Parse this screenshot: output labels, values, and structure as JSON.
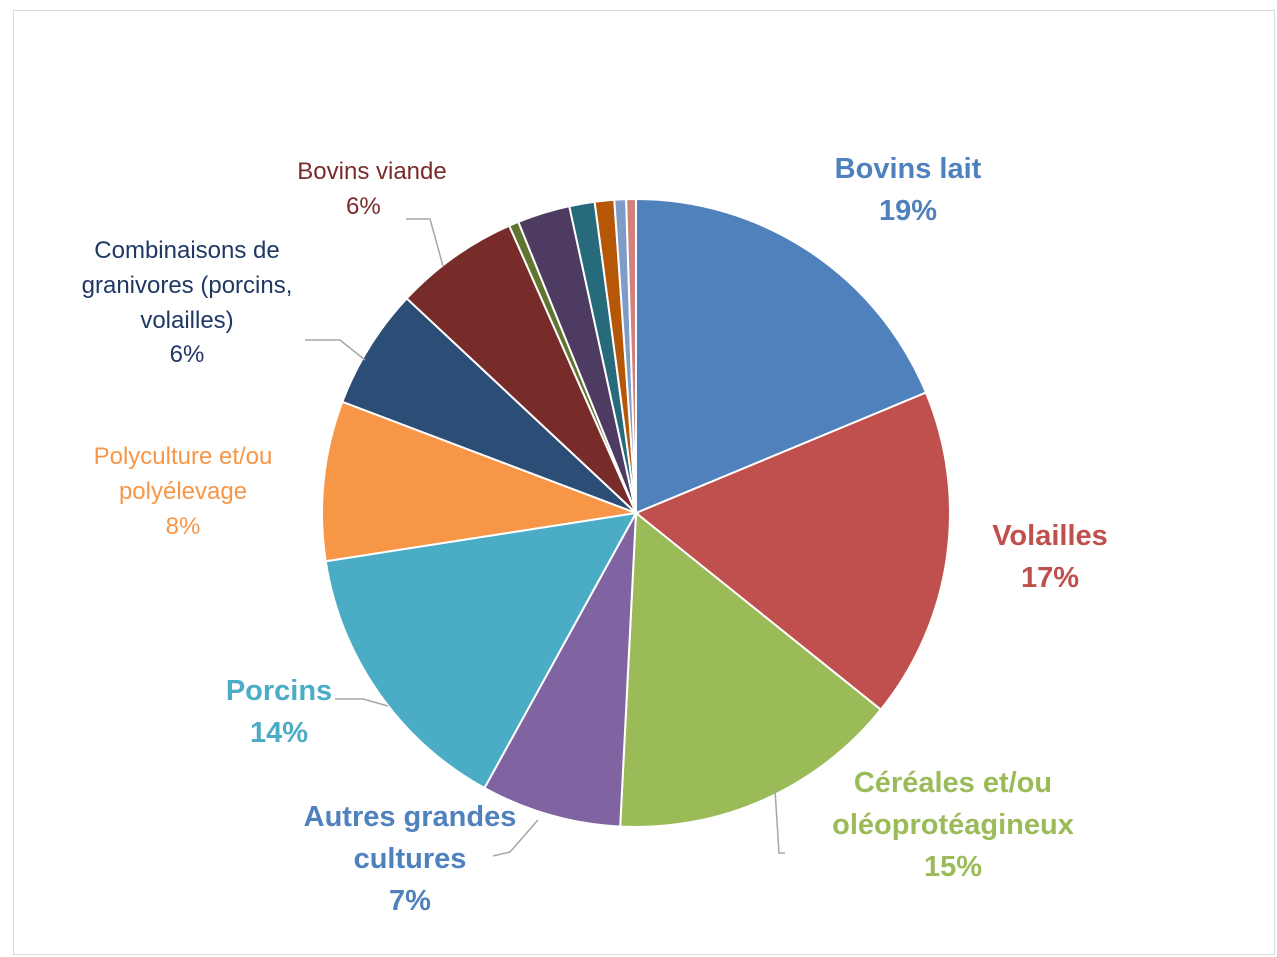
{
  "chart_data": {
    "type": "pie",
    "slices": [
      {
        "label": "Bovins lait",
        "value_label": "19%",
        "value": 18.7,
        "color": "#4F81BD",
        "style": "big"
      },
      {
        "label": "Volailles",
        "value_label": "17%",
        "value": 17.0,
        "color": "#C0504D",
        "style": "big"
      },
      {
        "label": "Céréales et/ou oléoprotéagineux",
        "value_label": "15%",
        "value": 15.0,
        "color": "#9BBB59",
        "style": "big"
      },
      {
        "label": "Autres grandes cultures",
        "value_label": "7%",
        "value": 7.2,
        "color": "#8064A2",
        "style": "big"
      },
      {
        "label": "Porcins",
        "value_label": "14%",
        "value": 14.5,
        "color": "#4BACC6",
        "style": "big"
      },
      {
        "label": "Polyculture et/ou polyélevage",
        "value_label": "8%",
        "value": 8.2,
        "color": "#F79646",
        "style": "small"
      },
      {
        "label": "Combinaisons de granivores (porcins, volailles)",
        "value_label": "6%",
        "value": 6.2,
        "color": "#2C4D75",
        "style": "small"
      },
      {
        "label": "Bovins viande",
        "value_label": "6%",
        "value": 6.4,
        "color": "#772C2A",
        "style": "small"
      },
      {
        "label": "",
        "value_label": "",
        "value": 0.5,
        "color": "#5F7530"
      },
      {
        "label": "",
        "value_label": "",
        "value": 2.7,
        "color": "#4D3B62"
      },
      {
        "label": "",
        "value_label": "",
        "value": 1.3,
        "color": "#276A7C"
      },
      {
        "label": "",
        "value_label": "",
        "value": 1.0,
        "color": "#B65708"
      },
      {
        "label": "",
        "value_label": "",
        "value": 0.6,
        "color": "#7F9CC8"
      },
      {
        "label": "",
        "value_label": "",
        "value": 0.5,
        "color": "#D2817F"
      }
    ]
  }
}
